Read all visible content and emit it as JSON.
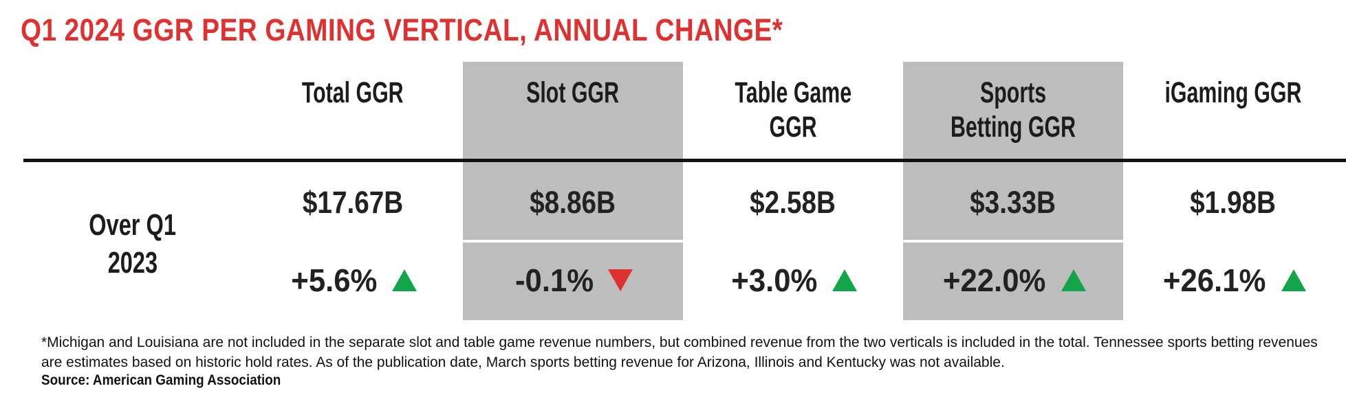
{
  "title": "Q1 2024 GGR PER GAMING VERTICAL, ANNUAL CHANGE*",
  "row_label_line1": "Over Q1",
  "row_label_line2": "2023",
  "colors": {
    "title": "#e03131",
    "shade": "#bdbdbd",
    "up": "#12a54b",
    "down": "#e03131"
  },
  "chart_data": {
    "type": "table",
    "title": "Q1 2024 GGR PER GAMING VERTICAL, ANNUAL CHANGE*",
    "row_label": "Over Q1 2023",
    "columns": [
      {
        "header_line1": "Total GGR",
        "header_line2": "",
        "value": "$17.67B",
        "change": "+5.6%",
        "direction": "up",
        "shaded": false
      },
      {
        "header_line1": "Slot GGR",
        "header_line2": "",
        "value": "$8.86B",
        "change": "-0.1%",
        "direction": "down",
        "shaded": true
      },
      {
        "header_line1": "Table Game",
        "header_line2": "GGR",
        "value": "$2.58B",
        "change": "+3.0%",
        "direction": "up",
        "shaded": false
      },
      {
        "header_line1": "Sports",
        "header_line2": "Betting GGR",
        "value": "$3.33B",
        "change": "+22.0%",
        "direction": "up",
        "shaded": true
      },
      {
        "header_line1": "iGaming GGR",
        "header_line2": "",
        "value": "$1.98B",
        "change": "+26.1%",
        "direction": "up",
        "shaded": false
      }
    ]
  },
  "footnote": "*Michigan and Louisiana are not included in the separate slot and table game revenue numbers, but combined revenue from the two verticals is included in the total. Tennessee sports betting revenues are estimates based on historic hold rates. As of the publication date, March sports betting revenue for Arizona, Illinois and Kentucky was not available.",
  "source": "Source: American Gaming Association"
}
